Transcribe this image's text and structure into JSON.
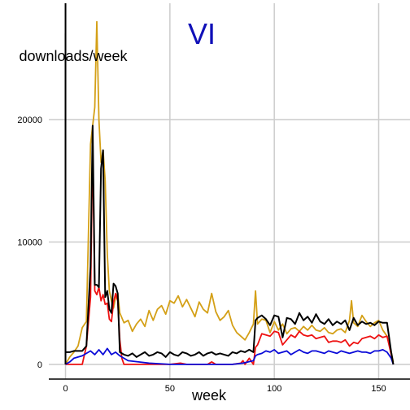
{
  "chart_data": {
    "type": "line",
    "title": "VI",
    "title_color": "#1010b8",
    "xlabel": "week",
    "ylabel": "downloads/week",
    "xlim": [
      -8,
      165
    ],
    "ylim": [
      -1200,
      29500
    ],
    "x_ticks": [
      0,
      50,
      100,
      150
    ],
    "x_tick_labels": [
      "0",
      "50",
      "100",
      "150"
    ],
    "y_ticks": [
      0,
      10000,
      20000
    ],
    "y_tick_labels": [
      "0",
      "10000",
      "20000"
    ],
    "grid": true,
    "legend": "none",
    "series": [
      {
        "color": "#d4a017",
        "points": [
          [
            0,
            0
          ],
          [
            2,
            600
          ],
          [
            4,
            1000
          ],
          [
            6,
            1500
          ],
          [
            8,
            3000
          ],
          [
            10,
            3500
          ],
          [
            12,
            18000
          ],
          [
            13,
            19500
          ],
          [
            14,
            21000
          ],
          [
            15,
            28000
          ],
          [
            16,
            20000
          ],
          [
            17,
            16500
          ],
          [
            18,
            17500
          ],
          [
            19,
            15000
          ],
          [
            20,
            9000
          ],
          [
            21,
            6000
          ],
          [
            22,
            5200
          ],
          [
            23,
            4600
          ],
          [
            24,
            5500
          ],
          [
            25,
            5800
          ],
          [
            26,
            4200
          ],
          [
            28,
            3400
          ],
          [
            30,
            3600
          ],
          [
            32,
            2700
          ],
          [
            34,
            3300
          ],
          [
            36,
            3700
          ],
          [
            38,
            3100
          ],
          [
            40,
            4400
          ],
          [
            42,
            3600
          ],
          [
            44,
            4500
          ],
          [
            46,
            4800
          ],
          [
            48,
            4100
          ],
          [
            50,
            5200
          ],
          [
            52,
            5000
          ],
          [
            54,
            5600
          ],
          [
            56,
            4700
          ],
          [
            58,
            5300
          ],
          [
            60,
            4600
          ],
          [
            62,
            3900
          ],
          [
            64,
            5100
          ],
          [
            66,
            4500
          ],
          [
            68,
            4200
          ],
          [
            70,
            5800
          ],
          [
            72,
            4300
          ],
          [
            74,
            3600
          ],
          [
            76,
            3900
          ],
          [
            78,
            4400
          ],
          [
            80,
            3200
          ],
          [
            82,
            2600
          ],
          [
            84,
            2300
          ],
          [
            86,
            2000
          ],
          [
            88,
            2600
          ],
          [
            90,
            3300
          ],
          [
            91,
            6000
          ],
          [
            92,
            3300
          ],
          [
            94,
            3700
          ],
          [
            96,
            3600
          ],
          [
            98,
            2600
          ],
          [
            100,
            3500
          ],
          [
            102,
            2800
          ],
          [
            104,
            3300
          ],
          [
            106,
            2500
          ],
          [
            108,
            2900
          ],
          [
            110,
            3000
          ],
          [
            112,
            2700
          ],
          [
            114,
            3100
          ],
          [
            116,
            2800
          ],
          [
            118,
            3200
          ],
          [
            120,
            2800
          ],
          [
            122,
            2700
          ],
          [
            124,
            3000
          ],
          [
            126,
            2600
          ],
          [
            128,
            2500
          ],
          [
            130,
            2800
          ],
          [
            132,
            2900
          ],
          [
            134,
            2600
          ],
          [
            136,
            3600
          ],
          [
            137,
            5200
          ],
          [
            138,
            3400
          ],
          [
            140,
            3100
          ],
          [
            142,
            4000
          ],
          [
            144,
            3500
          ],
          [
            146,
            3100
          ],
          [
            148,
            3400
          ],
          [
            150,
            3600
          ],
          [
            152,
            2800
          ],
          [
            154,
            2300
          ],
          [
            156,
            1000
          ],
          [
            157,
            200
          ]
        ]
      },
      {
        "color": "#ee1111",
        "points": [
          [
            0,
            0
          ],
          [
            8,
            0
          ],
          [
            10,
            1500
          ],
          [
            12,
            5500
          ],
          [
            13,
            18000
          ],
          [
            14,
            6000
          ],
          [
            15,
            5700
          ],
          [
            16,
            6300
          ],
          [
            17,
            5200
          ],
          [
            18,
            5700
          ],
          [
            19,
            4900
          ],
          [
            20,
            5000
          ],
          [
            21,
            3700
          ],
          [
            22,
            3500
          ],
          [
            23,
            5100
          ],
          [
            24,
            5800
          ],
          [
            25,
            5200
          ],
          [
            26,
            2000
          ],
          [
            27,
            500
          ],
          [
            28,
            0
          ],
          [
            40,
            0
          ],
          [
            50,
            0
          ],
          [
            55,
            100
          ],
          [
            58,
            0
          ],
          [
            68,
            0
          ],
          [
            70,
            200
          ],
          [
            72,
            0
          ],
          [
            80,
            0
          ],
          [
            84,
            100
          ],
          [
            85,
            300
          ],
          [
            86,
            0
          ],
          [
            88,
            500
          ],
          [
            90,
            0
          ],
          [
            91,
            1400
          ],
          [
            92,
            1600
          ],
          [
            94,
            2500
          ],
          [
            96,
            2400
          ],
          [
            98,
            2300
          ],
          [
            100,
            2700
          ],
          [
            102,
            2600
          ],
          [
            104,
            1600
          ],
          [
            106,
            2000
          ],
          [
            108,
            2400
          ],
          [
            110,
            2200
          ],
          [
            112,
            2700
          ],
          [
            114,
            2400
          ],
          [
            116,
            2300
          ],
          [
            118,
            2400
          ],
          [
            120,
            2100
          ],
          [
            122,
            2200
          ],
          [
            124,
            2300
          ],
          [
            126,
            1800
          ],
          [
            128,
            1900
          ],
          [
            130,
            1900
          ],
          [
            132,
            1800
          ],
          [
            134,
            2000
          ],
          [
            136,
            1500
          ],
          [
            138,
            1800
          ],
          [
            140,
            1700
          ],
          [
            142,
            2100
          ],
          [
            144,
            2200
          ],
          [
            146,
            2300
          ],
          [
            148,
            2100
          ],
          [
            150,
            2400
          ],
          [
            152,
            2200
          ],
          [
            154,
            2300
          ],
          [
            156,
            800
          ],
          [
            157,
            0
          ]
        ]
      },
      {
        "color": "#0a0ad8",
        "points": [
          [
            0,
            0
          ],
          [
            2,
            200
          ],
          [
            4,
            500
          ],
          [
            6,
            600
          ],
          [
            8,
            700
          ],
          [
            10,
            900
          ],
          [
            12,
            1100
          ],
          [
            14,
            800
          ],
          [
            16,
            1200
          ],
          [
            18,
            800
          ],
          [
            20,
            1300
          ],
          [
            22,
            800
          ],
          [
            24,
            1000
          ],
          [
            26,
            700
          ],
          [
            28,
            500
          ],
          [
            30,
            300
          ],
          [
            35,
            200
          ],
          [
            40,
            100
          ],
          [
            50,
            0
          ],
          [
            60,
            0
          ],
          [
            70,
            0
          ],
          [
            80,
            0
          ],
          [
            85,
            100
          ],
          [
            90,
            300
          ],
          [
            91,
            700
          ],
          [
            92,
            800
          ],
          [
            94,
            900
          ],
          [
            96,
            1100
          ],
          [
            98,
            1000
          ],
          [
            100,
            1200
          ],
          [
            102,
            900
          ],
          [
            104,
            1000
          ],
          [
            106,
            1100
          ],
          [
            108,
            800
          ],
          [
            110,
            1000
          ],
          [
            112,
            1200
          ],
          [
            114,
            1000
          ],
          [
            116,
            900
          ],
          [
            118,
            1100
          ],
          [
            120,
            1100
          ],
          [
            122,
            1000
          ],
          [
            124,
            900
          ],
          [
            126,
            1100
          ],
          [
            128,
            1000
          ],
          [
            130,
            900
          ],
          [
            132,
            1100
          ],
          [
            134,
            1000
          ],
          [
            136,
            900
          ],
          [
            138,
            1000
          ],
          [
            140,
            1100
          ],
          [
            142,
            1000
          ],
          [
            144,
            1000
          ],
          [
            146,
            900
          ],
          [
            148,
            1100
          ],
          [
            150,
            1100
          ],
          [
            152,
            1200
          ],
          [
            154,
            1000
          ],
          [
            156,
            500
          ],
          [
            157,
            0
          ]
        ]
      },
      {
        "color": "#000000",
        "points": [
          [
            0,
            0
          ],
          [
            0,
            27000
          ],
          [
            0,
            1000
          ],
          [
            2,
            1000
          ],
          [
            4,
            1100
          ],
          [
            6,
            1100
          ],
          [
            8,
            1100
          ],
          [
            10,
            1500
          ],
          [
            12,
            8000
          ],
          [
            13,
            19500
          ],
          [
            14,
            6500
          ],
          [
            15,
            6500
          ],
          [
            16,
            6300
          ],
          [
            17,
            16000
          ],
          [
            18,
            17500
          ],
          [
            19,
            5500
          ],
          [
            20,
            6000
          ],
          [
            21,
            4500
          ],
          [
            22,
            4200
          ],
          [
            23,
            6600
          ],
          [
            24,
            6400
          ],
          [
            25,
            5800
          ],
          [
            26,
            1000
          ],
          [
            28,
            800
          ],
          [
            30,
            700
          ],
          [
            32,
            900
          ],
          [
            34,
            600
          ],
          [
            36,
            800
          ],
          [
            38,
            1000
          ],
          [
            40,
            700
          ],
          [
            42,
            800
          ],
          [
            44,
            1000
          ],
          [
            46,
            900
          ],
          [
            48,
            600
          ],
          [
            50,
            1000
          ],
          [
            52,
            800
          ],
          [
            54,
            700
          ],
          [
            56,
            1000
          ],
          [
            58,
            900
          ],
          [
            60,
            700
          ],
          [
            62,
            800
          ],
          [
            64,
            1000
          ],
          [
            66,
            700
          ],
          [
            68,
            900
          ],
          [
            70,
            1000
          ],
          [
            72,
            800
          ],
          [
            74,
            900
          ],
          [
            76,
            800
          ],
          [
            78,
            700
          ],
          [
            80,
            1000
          ],
          [
            82,
            900
          ],
          [
            84,
            1100
          ],
          [
            86,
            1000
          ],
          [
            88,
            1200
          ],
          [
            90,
            1000
          ],
          [
            91,
            3600
          ],
          [
            92,
            3800
          ],
          [
            94,
            4000
          ],
          [
            96,
            3700
          ],
          [
            98,
            3200
          ],
          [
            100,
            4000
          ],
          [
            102,
            3900
          ],
          [
            104,
            2200
          ],
          [
            106,
            3800
          ],
          [
            108,
            3700
          ],
          [
            110,
            3300
          ],
          [
            112,
            4200
          ],
          [
            114,
            3600
          ],
          [
            116,
            3900
          ],
          [
            118,
            3400
          ],
          [
            120,
            4100
          ],
          [
            122,
            3500
          ],
          [
            124,
            3300
          ],
          [
            126,
            3700
          ],
          [
            128,
            3200
          ],
          [
            130,
            3500
          ],
          [
            132,
            3300
          ],
          [
            134,
            3600
          ],
          [
            136,
            2800
          ],
          [
            138,
            3800
          ],
          [
            140,
            3200
          ],
          [
            142,
            3500
          ],
          [
            144,
            3300
          ],
          [
            146,
            3400
          ],
          [
            148,
            3200
          ],
          [
            150,
            3500
          ],
          [
            152,
            3400
          ],
          [
            154,
            3400
          ],
          [
            156,
            1000
          ],
          [
            157,
            0
          ]
        ]
      }
    ]
  }
}
